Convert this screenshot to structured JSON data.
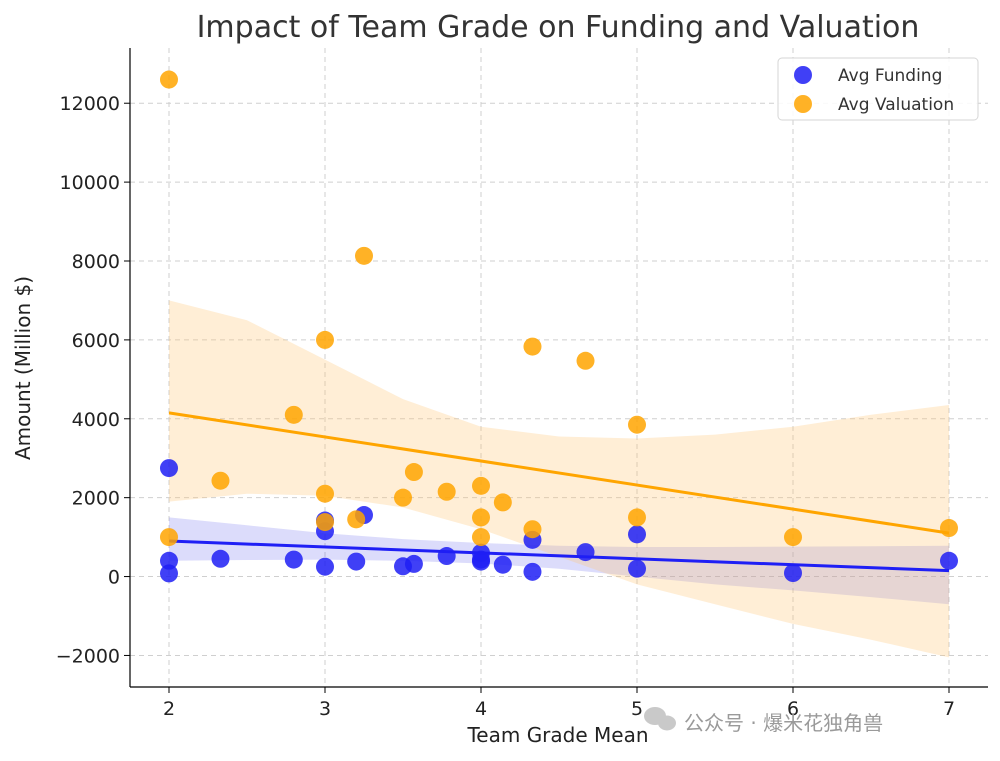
{
  "chart_data": {
    "type": "scatter",
    "title": "Impact of Team Grade on Funding and Valuation",
    "xlabel": "Team Grade Mean",
    "ylabel": "Amount (Million $)",
    "xlim": [
      1.75,
      7.25
    ],
    "ylim": [
      -2800,
      13400
    ],
    "x_ticks": [
      2,
      3,
      4,
      5,
      6,
      7
    ],
    "y_ticks": [
      -2000,
      0,
      2000,
      4000,
      6000,
      8000,
      10000,
      12000
    ],
    "y_tick_labels": [
      "−2000",
      "0",
      "2000",
      "4000",
      "6000",
      "8000",
      "10000",
      "12000"
    ],
    "grid": true,
    "legend_position": "top-right",
    "series": [
      {
        "name": "Avg Funding",
        "color": "#1f1ff5",
        "points": [
          {
            "x": 2.0,
            "y": 2750
          },
          {
            "x": 2.0,
            "y": 400
          },
          {
            "x": 2.0,
            "y": 80
          },
          {
            "x": 2.33,
            "y": 450
          },
          {
            "x": 2.8,
            "y": 430
          },
          {
            "x": 3.0,
            "y": 250
          },
          {
            "x": 3.0,
            "y": 1150
          },
          {
            "x": 3.0,
            "y": 1420
          },
          {
            "x": 3.2,
            "y": 380
          },
          {
            "x": 3.25,
            "y": 1560
          },
          {
            "x": 3.5,
            "y": 260
          },
          {
            "x": 3.57,
            "y": 320
          },
          {
            "x": 3.78,
            "y": 520
          },
          {
            "x": 4.0,
            "y": 380
          },
          {
            "x": 4.0,
            "y": 430
          },
          {
            "x": 4.0,
            "y": 600
          },
          {
            "x": 4.14,
            "y": 300
          },
          {
            "x": 4.33,
            "y": 120
          },
          {
            "x": 4.33,
            "y": 930
          },
          {
            "x": 4.67,
            "y": 620
          },
          {
            "x": 5.0,
            "y": 200
          },
          {
            "x": 5.0,
            "y": 1070
          },
          {
            "x": 6.0,
            "y": 90
          },
          {
            "x": 7.0,
            "y": 400
          }
        ],
        "trend": {
          "x": [
            2,
            7
          ],
          "y": [
            900,
            150
          ]
        },
        "ci_upper": {
          "x": [
            2,
            2.5,
            3,
            3.5,
            4,
            4.5,
            5,
            5.5,
            6,
            6.5,
            7
          ],
          "y": [
            1500,
            1300,
            1100,
            950,
            850,
            780,
            750,
            750,
            760,
            770,
            780
          ]
        },
        "ci_lower": {
          "x": [
            2,
            2.5,
            3,
            3.5,
            4,
            4.5,
            5,
            5.5,
            6,
            6.5,
            7
          ],
          "y": [
            400,
            420,
            430,
            400,
            330,
            200,
            0,
            -200,
            -350,
            -520,
            -700
          ]
        }
      },
      {
        "name": "Avg Valuation",
        "color": "#ffa500",
        "points": [
          {
            "x": 2.0,
            "y": 12600
          },
          {
            "x": 2.0,
            "y": 1000
          },
          {
            "x": 2.33,
            "y": 2430
          },
          {
            "x": 2.8,
            "y": 4100
          },
          {
            "x": 3.0,
            "y": 6000
          },
          {
            "x": 3.0,
            "y": 2100
          },
          {
            "x": 3.0,
            "y": 1380
          },
          {
            "x": 3.2,
            "y": 1450
          },
          {
            "x": 3.25,
            "y": 8130
          },
          {
            "x": 3.5,
            "y": 2000
          },
          {
            "x": 3.57,
            "y": 2650
          },
          {
            "x": 3.78,
            "y": 2150
          },
          {
            "x": 4.0,
            "y": 2300
          },
          {
            "x": 4.0,
            "y": 1500
          },
          {
            "x": 4.0,
            "y": 1000
          },
          {
            "x": 4.14,
            "y": 1880
          },
          {
            "x": 4.33,
            "y": 5830
          },
          {
            "x": 4.33,
            "y": 1200
          },
          {
            "x": 4.67,
            "y": 5470
          },
          {
            "x": 5.0,
            "y": 3850
          },
          {
            "x": 5.0,
            "y": 1500
          },
          {
            "x": 6.0,
            "y": 1000
          },
          {
            "x": 7.0,
            "y": 1230
          }
        ],
        "trend": {
          "x": [
            2,
            7
          ],
          "y": [
            4150,
            1100
          ]
        },
        "ci_upper": {
          "x": [
            2,
            2.5,
            3,
            3.5,
            4,
            4.5,
            5,
            5.5,
            6,
            6.5,
            7
          ],
          "y": [
            7000,
            6500,
            5500,
            4500,
            3800,
            3550,
            3500,
            3600,
            3800,
            4100,
            4350
          ]
        },
        "ci_lower": {
          "x": [
            2,
            2.5,
            3,
            3.5,
            4,
            4.5,
            5,
            5.5,
            6,
            6.5,
            7
          ],
          "y": [
            1900,
            2100,
            2050,
            1750,
            1200,
            500,
            -200,
            -700,
            -1200,
            -1600,
            -2050
          ]
        }
      }
    ]
  },
  "watermark": "公众号 · 爆米花独角兽"
}
